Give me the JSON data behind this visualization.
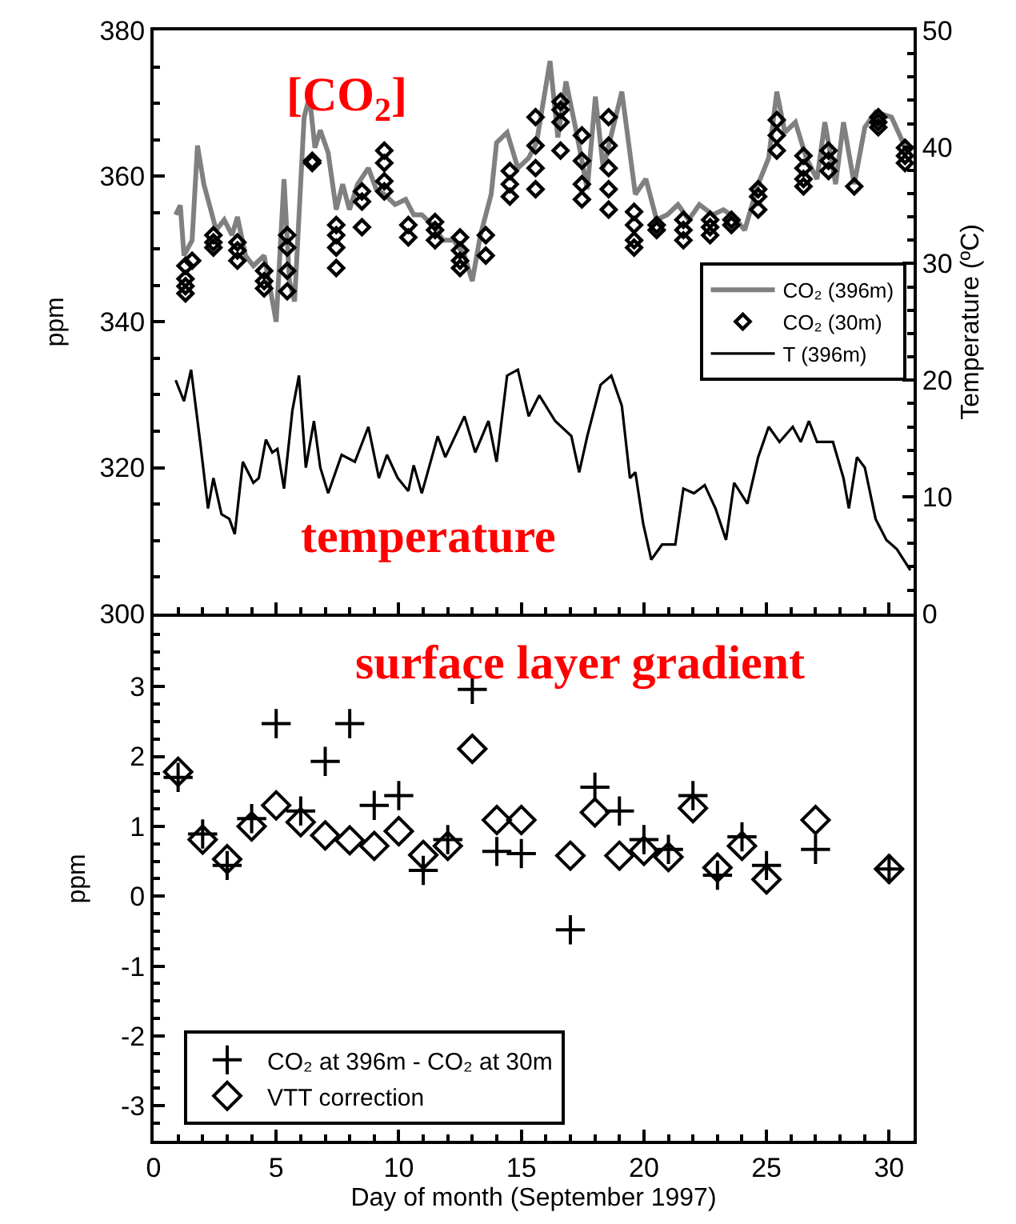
{
  "chart_data": [
    {
      "type": "line",
      "ylabel": "ppm",
      "y2label": "Temperature (ºC)",
      "annotations": [
        "[CO$_{2}$]",
        "temperature"
      ],
      "xlim": [
        0,
        31
      ],
      "xticks": [
        0,
        5,
        10,
        15,
        20,
        25,
        30
      ],
      "ylim": [
        300,
        380
      ],
      "yticks": [
        300,
        320,
        340,
        360,
        380
      ],
      "y2lim": [
        0,
        50
      ],
      "y2ticks": [
        0,
        10,
        20,
        30,
        40,
        50
      ],
      "tick_labels": "y",
      "legend": "right",
      "line_style": "solid",
      "series": [
        {
          "name": "CO₂ (396m)",
          "type": "line",
          "color": "#808080",
          "x": [
            0.9,
            1.09,
            1.24,
            1.57,
            1.79,
            2.05,
            2.33,
            2.55,
            2.88,
            3.2,
            3.42,
            3.75,
            4.07,
            4.51,
            5.0,
            5.32,
            5.54,
            5.75,
            6.14,
            6.36,
            6.58,
            6.8,
            7.12,
            7.45,
            7.71,
            7.99,
            8.32,
            8.76,
            9.08,
            9.41,
            9.85,
            10.28,
            10.61,
            10.94,
            11.37,
            11.81,
            12.24,
            12.68,
            13.0,
            13.33,
            13.77,
            13.99,
            14.42,
            14.86,
            15.3,
            15.62,
            16.17,
            16.49,
            16.82,
            17.25,
            17.69,
            18.02,
            18.34,
            19.1,
            19.65,
            20.08,
            20.52,
            20.95,
            21.39,
            21.83,
            22.26,
            22.81,
            23.24,
            23.68,
            24.11,
            24.66,
            25.09,
            25.42,
            25.75,
            26.18,
            26.62,
            27.06,
            27.38,
            27.82,
            28.14,
            28.58,
            29.01,
            29.45,
            30.1,
            30.76
          ],
          "values": [
            354.7,
            356.0,
            349.1,
            351.2,
            364.2,
            358.9,
            355.4,
            352.6,
            354.0,
            351.9,
            354.4,
            349.1,
            347.7,
            349.1,
            340.0,
            359.6,
            345.6,
            342.8,
            368.1,
            370.9,
            363.9,
            366.3,
            363.2,
            355.4,
            358.9,
            355.4,
            358.9,
            361.1,
            358.2,
            357.5,
            356.1,
            356.8,
            354.7,
            354.7,
            353.3,
            351.2,
            351.2,
            349.1,
            345.6,
            351.9,
            357.5,
            364.6,
            366.0,
            361.1,
            362.5,
            364.6,
            375.8,
            365.3,
            373.0,
            366.0,
            358.2,
            370.9,
            361.1,
            371.6,
            357.5,
            359.6,
            354.0,
            354.7,
            356.1,
            354.0,
            356.1,
            354.7,
            355.4,
            354.4,
            352.6,
            358.9,
            362.5,
            371.6,
            366.0,
            367.4,
            362.5,
            359.6,
            367.4,
            358.9,
            367.4,
            358.9,
            366.7,
            368.8,
            368.1,
            363.2
          ]
        },
        {
          "name": "CO₂ (30m)",
          "type": "scatter",
          "marker": "diamond",
          "color": "#000000",
          "x": [
            1.3,
            1.3,
            1.3,
            1.3,
            1.57,
            2.44,
            2.44,
            2.44,
            3.42,
            3.42,
            3.42,
            4.51,
            4.51,
            4.51,
            5.45,
            5.45,
            5.45,
            5.45,
            6.47,
            6.47,
            7.45,
            7.45,
            7.45,
            7.45,
            8.5,
            8.5,
            8.5,
            9.41,
            9.41,
            9.41,
            9.41,
            10.39,
            10.39,
            11.48,
            11.48,
            11.48,
            12.5,
            12.5,
            12.5,
            12.5,
            13.55,
            13.55,
            14.53,
            14.53,
            14.53,
            15.58,
            15.58,
            15.58,
            15.58,
            16.6,
            16.6,
            16.6,
            16.6,
            17.47,
            17.47,
            17.47,
            17.47,
            18.56,
            18.56,
            18.56,
            18.56,
            18.56,
            19.6,
            19.6,
            19.6,
            19.6,
            20.52,
            20.52,
            21.61,
            21.61,
            21.61,
            22.7,
            22.7,
            22.7,
            23.57,
            23.57,
            24.66,
            24.66,
            24.66,
            25.42,
            25.42,
            25.42,
            26.51,
            26.51,
            26.51,
            26.51,
            27.53,
            27.53,
            27.53,
            28.58,
            29.56,
            29.56,
            29.56,
            30.65,
            30.65,
            30.65
          ],
          "values": [
            347.7,
            345.9,
            344.9,
            343.9,
            348.4,
            351.9,
            350.9,
            350.2,
            350.9,
            349.8,
            348.4,
            347.0,
            345.6,
            344.6,
            351.9,
            350.2,
            347.0,
            344.2,
            362.1,
            361.8,
            353.3,
            351.9,
            350.2,
            347.4,
            357.9,
            356.5,
            353.0,
            363.5,
            361.8,
            359.3,
            357.9,
            353.3,
            351.6,
            353.7,
            352.6,
            351.2,
            351.6,
            349.8,
            348.4,
            347.4,
            351.9,
            349.1,
            360.7,
            358.9,
            357.2,
            368.1,
            364.2,
            361.1,
            358.2,
            370.2,
            369.1,
            367.4,
            363.5,
            365.6,
            362.1,
            358.9,
            356.8,
            368.1,
            364.2,
            361.1,
            358.2,
            355.4,
            355.1,
            353.3,
            351.2,
            350.2,
            353.3,
            352.6,
            354.0,
            352.6,
            351.2,
            354.0,
            353.0,
            351.9,
            354.0,
            353.3,
            358.2,
            357.2,
            355.4,
            367.7,
            365.6,
            363.5,
            362.8,
            361.1,
            359.6,
            358.6,
            363.5,
            362.1,
            360.7,
            358.6,
            368.1,
            367.4,
            366.7,
            363.9,
            362.8,
            361.8
          ]
        },
        {
          "name": "T (396m)",
          "type": "line",
          "axis": "y2",
          "color": "#000000",
          "x": [
            0.9,
            1.24,
            1.53,
            1.9,
            2.22,
            2.44,
            2.77,
            3.09,
            3.31,
            3.64,
            4.07,
            4.29,
            4.58,
            4.84,
            5.05,
            5.32,
            5.66,
            5.93,
            6.21,
            6.54,
            6.8,
            7.12,
            7.67,
            8.21,
            8.76,
            9.19,
            9.52,
            9.96,
            10.39,
            10.61,
            10.94,
            11.59,
            11.9,
            12.68,
            13.12,
            13.66,
            13.99,
            14.42,
            14.86,
            15.3,
            15.73,
            16.38,
            17.04,
            17.36,
            17.69,
            18.23,
            18.67,
            19.1,
            19.43,
            19.65,
            19.97,
            20.3,
            20.74,
            21.28,
            21.61,
            22.04,
            22.48,
            22.92,
            23.35,
            23.68,
            24.22,
            24.66,
            25.09,
            25.53,
            26.07,
            26.4,
            26.73,
            27.06,
            27.71,
            28.14,
            28.36,
            28.69,
            29.01,
            29.45,
            29.89,
            30.32,
            30.87
          ],
          "values": [
            20.0,
            18.2,
            20.9,
            14.7,
            9.0,
            11.6,
            8.5,
            8.1,
            6.8,
            13.0,
            11.2,
            11.6,
            14.9,
            13.8,
            14.1,
            10.7,
            17.4,
            20.4,
            12.5,
            16.5,
            12.5,
            10.3,
            13.6,
            13.0,
            16.0,
            11.6,
            13.6,
            11.6,
            10.5,
            12.7,
            10.3,
            15.2,
            13.4,
            16.9,
            13.8,
            16.5,
            13.0,
            20.4,
            20.9,
            16.9,
            18.7,
            16.5,
            15.2,
            12.1,
            15.2,
            19.6,
            20.4,
            17.8,
            11.6,
            12.1,
            7.7,
            4.6,
            5.9,
            5.9,
            10.7,
            10.3,
            11.0,
            9.0,
            6.3,
            11.2,
            9.4,
            13.4,
            16.0,
            14.7,
            16.0,
            14.7,
            16.5,
            14.7,
            14.7,
            11.6,
            9.0,
            13.4,
            12.5,
            8.1,
            6.3,
            5.5,
            3.7
          ]
        }
      ]
    },
    {
      "type": "scatter",
      "ylabel": "ppm",
      "xlabel": "Day of month (September 1997)",
      "annotations": [
        "surface layer gradient"
      ],
      "xlim": [
        0,
        31
      ],
      "xticks": [
        0,
        5,
        10,
        15,
        20,
        25,
        30
      ],
      "ylim": [
        -3.5,
        4
      ],
      "yticks": [
        -3,
        -2,
        -1,
        0,
        1,
        2,
        3
      ],
      "legend": "bottom left",
      "series": [
        {
          "name": "CO₂ at 396m - CO₂ at 30m",
          "marker": "cross",
          "color": "#000000",
          "x": [
            1,
            2,
            3,
            4,
            5,
            6,
            7,
            8,
            9,
            10,
            11,
            12,
            13,
            14,
            15,
            17,
            18,
            19,
            20,
            21,
            22,
            23,
            24,
            25,
            27,
            30
          ],
          "values": [
            1.7,
            0.89,
            0.44,
            1.11,
            2.47,
            1.22,
            1.93,
            2.47,
            1.3,
            1.44,
            0.37,
            0.81,
            2.96,
            0.64,
            0.61,
            -0.48,
            1.56,
            1.22,
            0.81,
            0.67,
            1.44,
            0.3,
            0.85,
            0.44,
            0.67,
            0.39
          ]
        },
        {
          "name": "VTT correction",
          "marker": "diamond",
          "color": "#000000",
          "x": [
            1,
            2,
            3,
            4,
            5,
            6,
            7,
            8,
            9,
            10,
            11,
            12,
            13,
            14,
            15,
            17,
            18,
            19,
            20,
            21,
            22,
            23,
            24,
            25,
            27,
            30
          ],
          "values": [
            1.78,
            0.81,
            0.53,
            1.0,
            1.3,
            1.06,
            0.87,
            0.8,
            0.72,
            0.93,
            0.59,
            0.72,
            2.11,
            1.09,
            1.09,
            0.58,
            1.2,
            0.58,
            0.65,
            0.56,
            1.26,
            0.41,
            0.72,
            0.24,
            1.09,
            0.39
          ]
        }
      ]
    }
  ]
}
